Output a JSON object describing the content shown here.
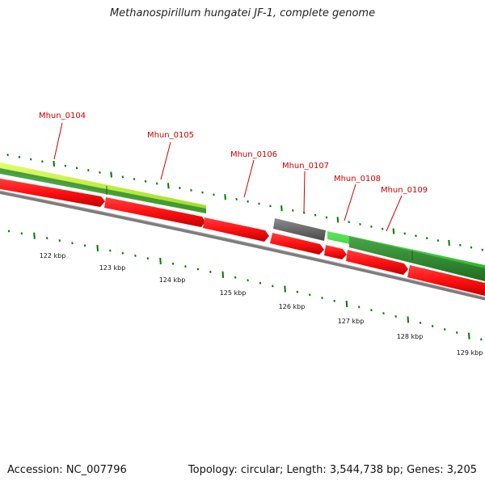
{
  "title": "Methanospirillum hungatei JF-1, complete genome",
  "footer": {
    "accession": "Accession: NC_007796",
    "summary": "Topology: circular; Length: 3,544,738 bp; Genes: 3,205"
  },
  "genes": [
    {
      "label": "Mhun_0104"
    },
    {
      "label": "Mhun_0105"
    },
    {
      "label": "Mhun_0106"
    },
    {
      "label": "Mhun_0107"
    },
    {
      "label": "Mhun_0108"
    },
    {
      "label": "Mhun_0109"
    }
  ],
  "ticks": [
    {
      "label": "122 kbp"
    },
    {
      "label": "123 kbp"
    },
    {
      "label": "124 kbp"
    },
    {
      "label": "125 kbp"
    },
    {
      "label": "126 kbp"
    },
    {
      "label": "127 kbp"
    },
    {
      "label": "128 kbp"
    },
    {
      "label": "129 kbp"
    }
  ],
  "colors": {
    "gene_label": "#cc0000",
    "leader": "#cc0000",
    "cds_red": "#ff1a1a",
    "cds_red_dark": "#b30000",
    "gray_feature": "#707070",
    "backbone": "#8c8c8c",
    "yellow_green": "#c8f540",
    "light_green": "#3cd03c",
    "dark_green": "#2e8b2e",
    "tick_green": "#007a00"
  }
}
